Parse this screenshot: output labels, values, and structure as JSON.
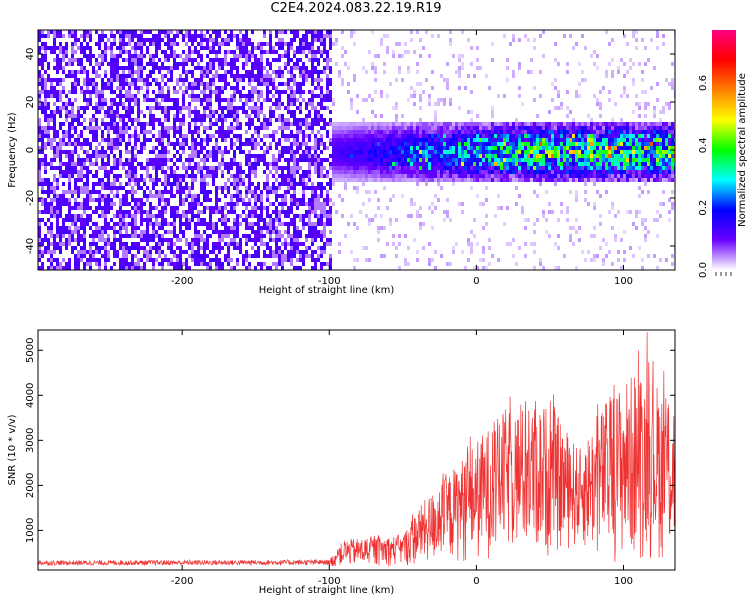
{
  "title": "C2E4.2024.083.22.19.R19",
  "chart_data": [
    {
      "type": "heatmap",
      "xlabel": "Height of straight line (km)",
      "ylabel": "Frequency (Hz)",
      "xlim": [
        -298,
        135
      ],
      "ylim": [
        -50,
        50
      ],
      "xticks": [
        -200,
        -100,
        0,
        100
      ],
      "yticks": [
        -40,
        -20,
        0,
        20,
        40
      ],
      "colorbar": {
        "label": "Normalized spectral amplitude",
        "range": [
          0.0,
          0.77
        ],
        "ticks": [
          0.0,
          0.2,
          0.4,
          0.6
        ],
        "colormap": [
          "#ffffff",
          "#6a00ff",
          "#0000ff",
          "#00ffff",
          "#00ff00",
          "#ffff00",
          "#ff8000",
          "#ff0000",
          "#ff0080"
        ]
      },
      "features": [
        {
          "x_range": [
            -298,
            -100
          ],
          "description": "uniform noise",
          "amplitude": 0.08
        },
        {
          "x_range": [
            -100,
            135
          ],
          "frequency_band": [
            -10,
            10
          ],
          "amplitude_peak": 0.6
        }
      ]
    },
    {
      "type": "line",
      "xlabel": "Height of straight line (km)",
      "ylabel": "SNR (10 * v/v)",
      "xlim": [
        -298,
        135
      ],
      "ylim": [
        120,
        5450
      ],
      "xticks": [
        -200,
        -100,
        0,
        100
      ],
      "yticks": [
        1000,
        2000,
        3000,
        4000,
        5000
      ],
      "color": "#ee3333",
      "envelope": [
        {
          "x": -298,
          "low": 180,
          "high": 330
        },
        {
          "x": -100,
          "low": 180,
          "high": 350
        },
        {
          "x": -90,
          "low": 200,
          "high": 800
        },
        {
          "x": -50,
          "low": 200,
          "high": 900
        },
        {
          "x": -40,
          "low": 200,
          "high": 1500
        },
        {
          "x": -20,
          "low": 300,
          "high": 2200
        },
        {
          "x": 0,
          "low": 250,
          "high": 3000
        },
        {
          "x": 20,
          "low": 500,
          "high": 3700
        },
        {
          "x": 50,
          "low": 400,
          "high": 3800
        },
        {
          "x": 70,
          "low": 600,
          "high": 2800
        },
        {
          "x": 90,
          "low": 300,
          "high": 4000
        },
        {
          "x": 110,
          "low": 300,
          "high": 4600
        },
        {
          "x": 135,
          "low": 300,
          "high": 4000
        }
      ],
      "peak": {
        "x": 116,
        "y": 5400
      }
    }
  ]
}
